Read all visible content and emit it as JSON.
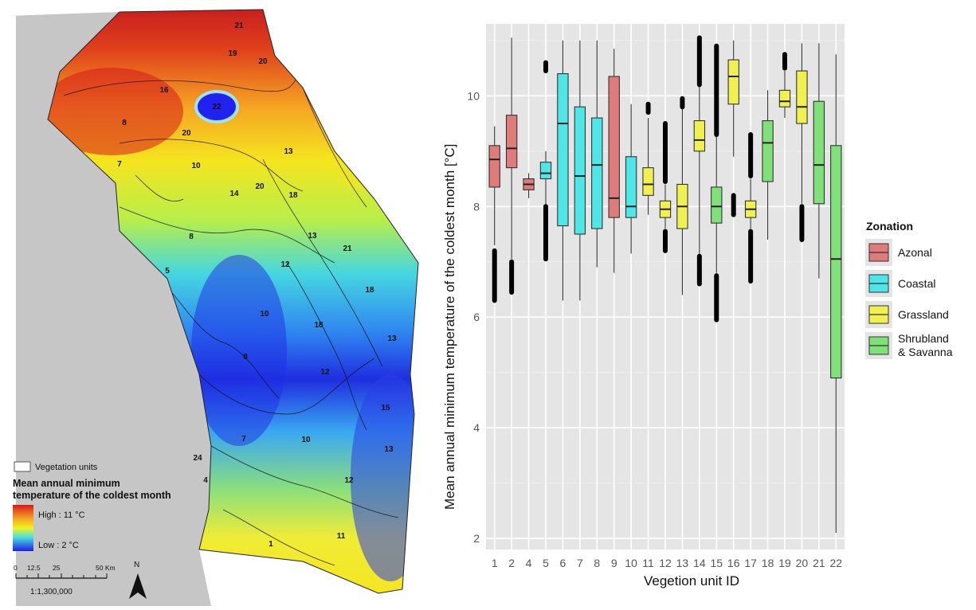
{
  "map": {
    "legend_box_label": "Vegetation units",
    "legend_title_line1": "Mean annual minimum",
    "legend_title_line2": "temperature of the coldest month",
    "high_label": "High : 11 °C",
    "low_label": "Low : 2 °C",
    "scale_ticks": [
      "0",
      "12.5",
      "25",
      "50 Km"
    ],
    "scale_ratio": "1:1,300,000",
    "north_label": "N",
    "unit_labels": [
      {
        "text": "21"
      },
      {
        "text": "19"
      },
      {
        "text": "20"
      },
      {
        "text": "16"
      },
      {
        "text": "22"
      },
      {
        "text": "8"
      },
      {
        "text": "20"
      },
      {
        "text": "13"
      },
      {
        "text": "7"
      },
      {
        "text": "10"
      },
      {
        "text": "14"
      },
      {
        "text": "20"
      },
      {
        "text": "18"
      },
      {
        "text": "8"
      },
      {
        "text": "13"
      },
      {
        "text": "21"
      },
      {
        "text": "5"
      },
      {
        "text": "12"
      },
      {
        "text": "18"
      },
      {
        "text": "10"
      },
      {
        "text": "18"
      },
      {
        "text": "13"
      },
      {
        "text": "8"
      },
      {
        "text": "12"
      },
      {
        "text": "15"
      },
      {
        "text": "7"
      },
      {
        "text": "10"
      },
      {
        "text": "24"
      },
      {
        "text": "4"
      },
      {
        "text": "12"
      },
      {
        "text": "13"
      },
      {
        "text": "1"
      },
      {
        "text": "11"
      }
    ],
    "colors": {
      "high": "#d7191c",
      "mid": "#f2f21f",
      "low": "#1d1de6",
      "sea": "#c8c8c8"
    }
  },
  "chart_data": {
    "type": "box",
    "xlabel": "Vegetion unit ID",
    "ylabel": "Mean annual minimum temperature of the coldest month [°C]",
    "ylim": [
      1.8,
      11.3
    ],
    "yticks": [
      2,
      4,
      6,
      8,
      10
    ],
    "legend": {
      "title": "Zonation",
      "placement": "right",
      "entries": [
        {
          "label": "Azonal",
          "color": "#e07b7b"
        },
        {
          "label": "Coastal",
          "color": "#4ee6e6"
        },
        {
          "label": "Grassland",
          "color": "#f0f050"
        },
        {
          "label": "Shrubland\n& Savanna",
          "color": "#80e07a"
        }
      ]
    },
    "boxes": [
      {
        "id": "1",
        "zone": "Azonal",
        "min": 7.3,
        "q1": 8.35,
        "median": 8.85,
        "q3": 9.1,
        "max": 9.45,
        "outliers_range": [
          6.3,
          7.2
        ]
      },
      {
        "id": "2",
        "zone": "Azonal",
        "min": 7.05,
        "q1": 8.7,
        "median": 9.05,
        "q3": 9.65,
        "max": 11.05,
        "outliers_range": [
          6.45,
          7.0
        ]
      },
      {
        "id": "4",
        "zone": "Azonal",
        "min": 8.15,
        "q1": 8.3,
        "median": 8.4,
        "q3": 8.5,
        "max": 8.6,
        "outliers_range": null
      },
      {
        "id": "5",
        "zone": "Coastal",
        "min": 8.0,
        "q1": 8.5,
        "median": 8.6,
        "q3": 8.8,
        "max": 9.0,
        "outliers_range": [
          7.05,
          8.0
        ],
        "outliers_high": [
          10.45,
          10.6
        ]
      },
      {
        "id": "6",
        "zone": "Coastal",
        "min": 6.3,
        "q1": 7.65,
        "median": 9.5,
        "q3": 10.4,
        "max": 11.0,
        "outliers_range": null
      },
      {
        "id": "7",
        "zone": "Coastal",
        "min": 6.3,
        "q1": 7.5,
        "median": 8.55,
        "q3": 9.8,
        "max": 11.0,
        "outliers_range": null
      },
      {
        "id": "8",
        "zone": "Coastal",
        "min": 6.9,
        "q1": 7.6,
        "median": 8.75,
        "q3": 9.6,
        "max": 11.0,
        "outliers_range": null
      },
      {
        "id": "9",
        "zone": "Azonal",
        "min": 6.8,
        "q1": 7.8,
        "median": 8.15,
        "q3": 10.35,
        "max": 10.85,
        "outliers_range": null
      },
      {
        "id": "10",
        "zone": "Coastal",
        "min": 7.15,
        "q1": 7.8,
        "median": 8.0,
        "q3": 8.9,
        "max": 9.85,
        "outliers_range": null
      },
      {
        "id": "11",
        "zone": "Grassland",
        "min": 7.85,
        "q1": 8.2,
        "median": 8.4,
        "q3": 8.7,
        "max": 9.6,
        "outliers_range": [
          9.7,
          9.85
        ]
      },
      {
        "id": "12",
        "zone": "Grassland",
        "min": 7.6,
        "q1": 7.8,
        "median": 7.95,
        "q3": 8.1,
        "max": 8.4,
        "outliers_range": [
          7.2,
          7.55
        ],
        "outliers_high": [
          8.45,
          9.5
        ]
      },
      {
        "id": "13",
        "zone": "Grassland",
        "min": 6.4,
        "q1": 7.6,
        "median": 8.0,
        "q3": 8.4,
        "max": 9.8,
        "outliers_range": [
          9.8,
          9.95
        ]
      },
      {
        "id": "14",
        "zone": "Grassland",
        "min": 7.1,
        "q1": 9.0,
        "median": 9.2,
        "q3": 9.55,
        "max": 10.2,
        "outliers_range": [
          6.6,
          7.1
        ],
        "outliers_high": [
          10.2,
          11.05
        ]
      },
      {
        "id": "15",
        "zone": "Shrubland & Savanna",
        "min": 6.8,
        "q1": 7.7,
        "median": 8.0,
        "q3": 8.35,
        "max": 9.3,
        "outliers_range": [
          5.95,
          6.75
        ],
        "outliers_high": [
          9.3,
          10.9
        ]
      },
      {
        "id": "16",
        "zone": "Grassland",
        "min": 8.9,
        "q1": 9.85,
        "median": 10.35,
        "q3": 10.65,
        "max": 11.0,
        "outliers_range": [
          7.85,
          8.2
        ]
      },
      {
        "id": "17",
        "zone": "Grassland",
        "min": 7.6,
        "q1": 7.8,
        "median": 7.95,
        "q3": 8.1,
        "max": 8.5,
        "outliers_range": [
          6.65,
          7.55
        ],
        "outliers_high": [
          8.55,
          9.3
        ]
      },
      {
        "id": "18",
        "zone": "Shrubland & Savanna",
        "min": 7.4,
        "q1": 8.45,
        "median": 9.15,
        "q3": 9.55,
        "max": 10.1,
        "outliers_range": null
      },
      {
        "id": "19",
        "zone": "Grassland",
        "min": 9.6,
        "q1": 9.8,
        "median": 9.9,
        "q3": 10.1,
        "max": 10.45,
        "outliers_range": [
          10.5,
          10.75
        ]
      },
      {
        "id": "20",
        "zone": "Grassland",
        "min": 8.05,
        "q1": 9.5,
        "median": 9.8,
        "q3": 10.45,
        "max": 10.95,
        "outliers_range": [
          7.4,
          8.0
        ]
      },
      {
        "id": "21",
        "zone": "Shrubland & Savanna",
        "min": 6.7,
        "q1": 8.05,
        "median": 8.75,
        "q3": 9.9,
        "max": 10.95,
        "outliers_range": null
      },
      {
        "id": "22",
        "zone": "Shrubland & Savanna",
        "min": 2.1,
        "q1": 4.9,
        "median": 7.05,
        "q3": 9.1,
        "max": 10.75,
        "outliers_range": null
      }
    ]
  }
}
